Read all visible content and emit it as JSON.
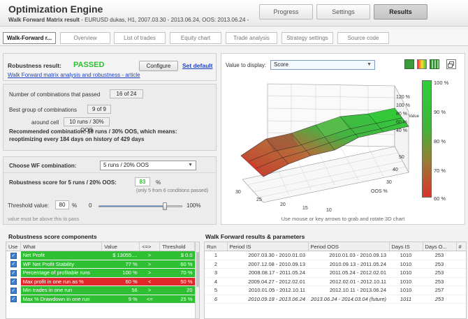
{
  "header": {
    "title": "Optimization Engine",
    "subtitle_bold": "Walk Forward Matrix result",
    "subtitle_rest": " - EURUSD  dukas, H1, 2007.03.30 - 2013.06.24, OOS: 2013.06.24 -",
    "tabs": [
      {
        "label": "Progress"
      },
      {
        "label": "Settings"
      },
      {
        "label": "Results"
      }
    ]
  },
  "subtabs": [
    {
      "label": "Walk-Forward r..."
    },
    {
      "label": "Overview"
    },
    {
      "label": "List of trades"
    },
    {
      "label": "Equity chart"
    },
    {
      "label": "Trade analysis"
    },
    {
      "label": "Strategy settings"
    },
    {
      "label": "Source code"
    }
  ],
  "robustness": {
    "result_label": "Robustness result:",
    "result_value": "PASSED",
    "configure_label": "Configure",
    "set_default_label": "Set default",
    "article_link": "Walk Forward matrix analysis and robustness - article",
    "passed_label": "Number of combinations that passed",
    "passed_value": "16 of 24",
    "best_group_label": "Best group of combinations",
    "best_group_value": "9 of 9",
    "around_cell_label": "around cell",
    "around_cell_value": "10 runs / 30% OOS",
    "recommend_line1": "Recommended combination: 10 runs / 30% OOS, which means:",
    "recommend_line2": "reoptimizing every 184 days on history of 429 days"
  },
  "wf_choose": {
    "label": "Choose WF combination:",
    "selected": "5 runs / 20% OOS",
    "score_label": "Robustness score for 5 runs / 20% OOS:",
    "score_value": "83",
    "score_unit": "%",
    "score_note": "(only 5 from 6 conditions passed)",
    "threshold_label": "Threshold value:",
    "threshold_value": "80",
    "threshold_unit": "%",
    "slider_min": "0",
    "slider_max": "100%",
    "threshold_fraction": 0.8,
    "note": "value must be above this to pass"
  },
  "chart3d": {
    "display_label": "Value to display:",
    "display_selected": "Score",
    "hint": "Use mouse or key arrows to grab and rotate 3D chart",
    "z_ticks": [
      "120 %",
      "100 %",
      "80 %",
      "60 %",
      "40 %"
    ],
    "z_label": "Value",
    "oos_ticks": [
      "30",
      "40",
      "50"
    ],
    "oos_label": "OOS %",
    "runs_ticks": [
      "30",
      "25",
      "20",
      "15",
      "10"
    ],
    "colorbar_ticks": [
      "100 %",
      "90 %",
      "80 %",
      "70 %",
      "60 %"
    ]
  },
  "score_components": {
    "title": "Robustness score components",
    "columns": [
      "Use",
      "What",
      "Value",
      "<=>",
      "Threshold"
    ],
    "rows": [
      {
        "what": "Net Profit",
        "value": "$ 13055....",
        "op": ">",
        "threshold": "$ 0.0",
        "status": "green"
      },
      {
        "what": "WF Net Profit Stability",
        "value": "77 %",
        "op": ">",
        "threshold": "60 %",
        "status": "green"
      },
      {
        "what": "Percentage of profitable runs",
        "value": "100 %",
        "op": ">",
        "threshold": "70 %",
        "status": "green"
      },
      {
        "what": "Max profit in one run as %",
        "value": "60 %",
        "op": "<",
        "threshold": "50 %",
        "status": "red"
      },
      {
        "what": "Min trades in one run",
        "value": "56",
        "op": ">",
        "threshold": "20",
        "status": "green"
      },
      {
        "what": "Max % Drawdown in one run",
        "value": "9 %",
        "op": "<=",
        "threshold": "25 %",
        "status": "green"
      }
    ]
  },
  "wf_results": {
    "title": "Walk Forward results & parameters",
    "columns": [
      "Run",
      "Period IS",
      "Period OOS",
      "Days IS",
      "Days O...",
      "#"
    ],
    "rows": [
      {
        "run": "1",
        "is": "2007.03.30 - 2010.01.03",
        "oos": "2010.01.03 - 2010.09.13",
        "days_is": "1010",
        "days_oos": "253"
      },
      {
        "run": "2",
        "is": "2007.12.08 - 2010.09.13",
        "oos": "2010.09.13 - 2011.05.24",
        "days_is": "1010",
        "days_oos": "253"
      },
      {
        "run": "3",
        "is": "2008.08.17 - 2011.05.24",
        "oos": "2011.05.24 - 2012.02.01",
        "days_is": "1010",
        "days_oos": "253"
      },
      {
        "run": "4",
        "is": "2009.04.27 - 2012.02.01",
        "oos": "2012.02.01 - 2012.10.11",
        "days_is": "1010",
        "days_oos": "253"
      },
      {
        "run": "5",
        "is": "2010.01.05 - 2012.10.11",
        "oos": "2012.10.11 - 2013.06.24",
        "days_is": "1010",
        "days_oos": "257"
      },
      {
        "run": "6",
        "is": "2010.09.18 - 2013.06.24",
        "oos": "2013.06.24 - 2014.03.04 (future)",
        "days_is": "1011",
        "days_oos": "253",
        "italic": true
      }
    ]
  },
  "colors": {
    "green": "#2fbf32",
    "red": "#e0282a",
    "link": "#1c3fc6"
  }
}
